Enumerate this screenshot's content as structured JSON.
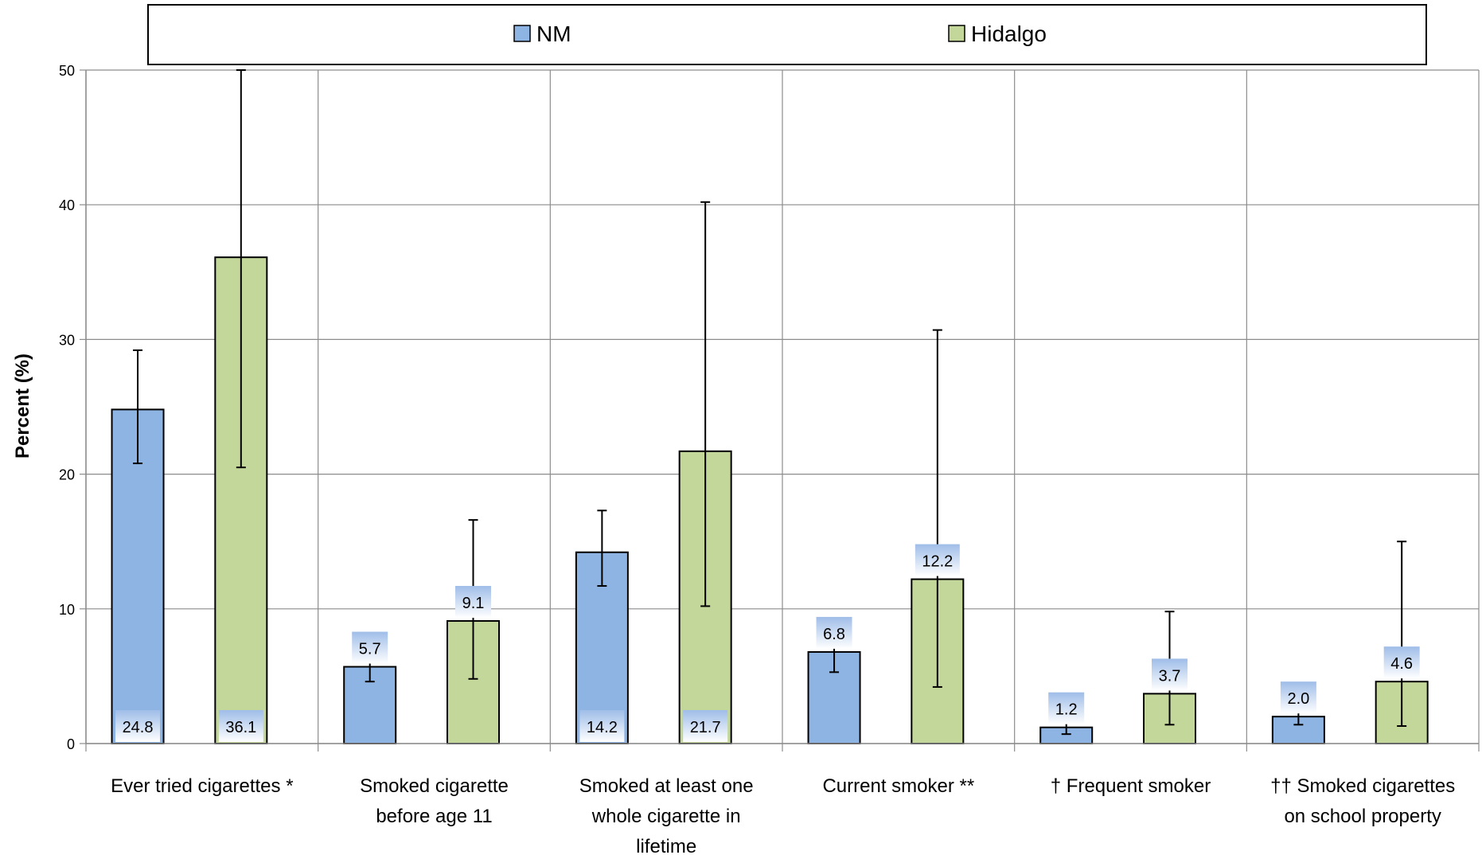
{
  "chart_data": {
    "type": "bar",
    "categories": [
      [
        "Ever tried cigarettes *"
      ],
      [
        "Smoked cigarette",
        "before age 11"
      ],
      [
        "Smoked at least one",
        "whole cigarette in",
        "lifetime"
      ],
      [
        "Current smoker **"
      ],
      [
        "† Frequent smoker"
      ],
      [
        "†† Smoked cigarettes",
        "on school property"
      ]
    ],
    "series": [
      {
        "name": "NM",
        "color": "#8EB4E3",
        "values": [
          24.8,
          5.7,
          14.2,
          6.8,
          1.2,
          2.0
        ],
        "labels": [
          "24.8",
          "5.7",
          "14.2",
          "6.8",
          "1.2",
          "2.0"
        ],
        "err_low": [
          20.8,
          4.6,
          11.7,
          5.3,
          0.7,
          1.4
        ],
        "err_high": [
          29.2,
          6.9,
          17.3,
          7.5,
          1.6,
          2.6
        ]
      },
      {
        "name": "Hidalgo",
        "color": "#C4D79B",
        "values": [
          36.1,
          9.1,
          21.7,
          12.2,
          3.7,
          4.6
        ],
        "labels": [
          "36.1",
          "9.1",
          "21.7",
          "12.2",
          "3.7",
          "4.6"
        ],
        "err_low": [
          20.5,
          4.8,
          10.2,
          4.2,
          1.4,
          1.3
        ],
        "err_high": [
          50.0,
          16.6,
          40.2,
          30.7,
          9.8,
          15.0
        ]
      }
    ],
    "ylabel": "Percent (%)",
    "ylim": [
      0,
      50
    ],
    "yticks": [
      "0",
      "10",
      "20",
      "30",
      "40",
      "50"
    ],
    "grid": true,
    "legend_position": "top"
  }
}
